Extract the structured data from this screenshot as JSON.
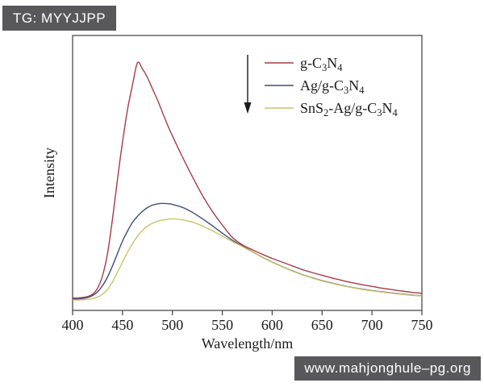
{
  "badges": {
    "top_left": "TG: MYYJJPP",
    "bottom_right": "www.mahjonghule–pg.org"
  },
  "chart_data": {
    "type": "line",
    "title": "",
    "xlabel": "Wavelength/nm",
    "ylabel": "Intensity",
    "y_units": "arbitrary units (no y tick labels; values normalized, g-C3N4 peak = 100)",
    "xlim": [
      400,
      750
    ],
    "ylim": [
      0,
      111
    ],
    "x_ticks": [
      400,
      450,
      500,
      550,
      600,
      650,
      700,
      750
    ],
    "grid": false,
    "frame": true,
    "legend": {
      "position": "upper right",
      "arrow": "down"
    },
    "axis_color": "#4a4a4a",
    "text_color": "#1c1c1c",
    "x": [
      400,
      405,
      410,
      415,
      420,
      425,
      430,
      435,
      440,
      445,
      450,
      455,
      460,
      465,
      470,
      475,
      480,
      485,
      490,
      495,
      500,
      510,
      520,
      530,
      540,
      550,
      560,
      570,
      580,
      590,
      600,
      610,
      620,
      630,
      640,
      650,
      660,
      670,
      680,
      690,
      700,
      710,
      720,
      730,
      740,
      750
    ],
    "series": [
      {
        "name": "g-C3N4",
        "label_parts": [
          [
            "g-C",
            false
          ],
          [
            "3",
            true
          ],
          [
            "N",
            false
          ],
          [
            "4",
            true
          ]
        ],
        "color": "#a73c46",
        "peak_nm": 465,
        "values": [
          5.0,
          5.0,
          5.2,
          5.6,
          6.5,
          9.0,
          14.0,
          23.0,
          37.0,
          53.0,
          68.0,
          81.0,
          91.0,
          100.0,
          97.5,
          94.0,
          89.5,
          85.0,
          80.0,
          75.0,
          70.5,
          62.0,
          54.0,
          46.5,
          40.0,
          34.5,
          29.5,
          26.5,
          24.5,
          22.7,
          21.0,
          19.5,
          18.0,
          16.5,
          15.3,
          14.2,
          13.1,
          12.1,
          11.2,
          10.4,
          9.7,
          9.0,
          8.4,
          7.8,
          7.3,
          6.9
        ]
      },
      {
        "name": "Ag/g-C3N4",
        "label_parts": [
          [
            "Ag/g-C",
            false
          ],
          [
            "3",
            true
          ],
          [
            "N",
            false
          ],
          [
            "4",
            true
          ]
        ],
        "color": "#3f4e7b",
        "peak_nm": 488,
        "values": [
          4.6,
          4.6,
          4.8,
          5.2,
          6.0,
          7.5,
          10.0,
          13.5,
          18.0,
          23.0,
          28.0,
          32.0,
          35.5,
          38.0,
          40.0,
          41.5,
          42.5,
          43.0,
          43.2,
          43.1,
          42.8,
          41.6,
          39.6,
          37.0,
          34.2,
          31.2,
          28.4,
          26.0,
          23.7,
          21.5,
          19.5,
          17.7,
          16.0,
          14.5,
          13.2,
          12.0,
          11.0,
          10.1,
          9.3,
          8.6,
          8.0,
          7.5,
          7.0,
          6.6,
          6.2,
          5.9
        ]
      },
      {
        "name": "SnS2-Ag/g-C3N4",
        "label_parts": [
          [
            "SnS",
            false
          ],
          [
            "2",
            true
          ],
          [
            "-Ag/g-C",
            false
          ],
          [
            "3",
            true
          ],
          [
            "N",
            false
          ],
          [
            "4",
            true
          ]
        ],
        "color": "#cdc266",
        "peak_nm": 500,
        "values": [
          4.2,
          4.2,
          4.3,
          4.5,
          4.8,
          5.4,
          6.5,
          8.5,
          11.5,
          15.5,
          19.5,
          23.5,
          27.0,
          30.0,
          32.3,
          34.0,
          35.2,
          36.0,
          36.5,
          36.8,
          37.0,
          36.6,
          35.6,
          34.1,
          32.2,
          30.0,
          27.8,
          25.8,
          23.6,
          21.4,
          19.4,
          17.6,
          15.9,
          14.4,
          13.1,
          11.9,
          10.9,
          10.0,
          9.2,
          8.5,
          7.9,
          7.4,
          6.9,
          6.5,
          6.1,
          5.8
        ]
      }
    ]
  }
}
